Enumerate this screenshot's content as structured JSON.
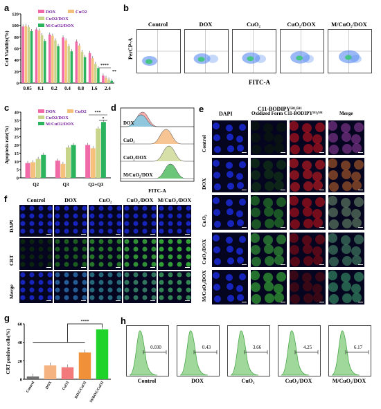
{
  "panels": {
    "a": "a",
    "b": "b",
    "c": "c",
    "d": "d",
    "e": "e",
    "f": "f",
    "g": "g",
    "h": "h"
  },
  "colors": {
    "pink": "#f06aa8",
    "orange": "#f4c07c",
    "olive": "#c8d48a",
    "green": "#2bb35e",
    "green_bright": "#1fd32a",
    "peach": "#f4b381",
    "salmon": "#f27a7a",
    "dark_orange": "#f09039"
  },
  "chart_data": [
    {
      "panel": "a",
      "type": "bar",
      "ylabel": "Cell Viability(%)",
      "categories": [
        "0.05",
        "0.1",
        "0.2",
        "0.4",
        "0.8",
        "1.6",
        "2.4"
      ],
      "ylim": [
        0,
        120
      ],
      "yticks": [
        "0",
        "20",
        "40",
        "60",
        "80",
        "100",
        "120"
      ],
      "series": [
        {
          "name": "DOX",
          "color": "#f06aa8",
          "values": [
            98,
            93,
            84,
            79,
            72,
            52,
            13
          ]
        },
        {
          "name": "CuO2",
          "color": "#f4c07c",
          "values": [
            99,
            91,
            82,
            74,
            65,
            43,
            9
          ]
        },
        {
          "name": "CuO2/DOX",
          "color": "#c8d48a",
          "values": [
            97,
            83,
            74,
            64,
            54,
            33,
            6
          ]
        },
        {
          "name": "M/CuO2/DOX",
          "color": "#2bb35e",
          "values": [
            90,
            73,
            64,
            55,
            45,
            26,
            4
          ]
        }
      ],
      "annotations": [
        "****",
        "**"
      ]
    },
    {
      "panel": "c",
      "type": "bar",
      "ylabel": "Apoptosis rate(%)",
      "categories": [
        "Q2",
        "Q3",
        "Q2+Q3"
      ],
      "ylim": [
        0,
        40
      ],
      "yticks": [
        "0",
        "5",
        "10",
        "15",
        "20",
        "25",
        "30",
        "35",
        "40"
      ],
      "series": [
        {
          "name": "DOX",
          "color": "#f06aa8",
          "values": [
            9,
            10.5,
            20
          ]
        },
        {
          "name": "CuO2",
          "color": "#f4c07c",
          "values": [
            9.5,
            8.5,
            18
          ]
        },
        {
          "name": "CuO2/DOX",
          "color": "#c8d48a",
          "values": [
            11.5,
            18.5,
            30
          ]
        },
        {
          "name": "M/CuO2/DOX",
          "color": "#2bb35e",
          "values": [
            14,
            20,
            34
          ]
        }
      ],
      "annotations": [
        "***",
        "*"
      ]
    },
    {
      "panel": "g",
      "type": "bar",
      "ylabel": "CRT positive cells(%)",
      "categories": [
        "Control",
        "DOX",
        "CuO2",
        "DOX/CuO2",
        "M/DOX/CuO2"
      ],
      "ylim": [
        0,
        60
      ],
      "yticks": [
        "0",
        "20",
        "40",
        "60"
      ],
      "colors": [
        "#6f6f6f",
        "#f4b381",
        "#f27a7a",
        "#f09039",
        "#1fd32a"
      ],
      "values": [
        3,
        15,
        13,
        29,
        54
      ],
      "annotations": [
        "****"
      ]
    },
    {
      "panel": "h",
      "type": "histogram",
      "groups": [
        {
          "name": "Control",
          "value": "0.030"
        },
        {
          "name": "DOX",
          "value": "0.43"
        },
        {
          "name": "CuO₂",
          "value": "3.66"
        },
        {
          "name": "CuO₂/DOX",
          "value": "4.25"
        },
        {
          "name": "M/CuO₂/DOX",
          "value": "6.17"
        }
      ]
    },
    {
      "panel": "d",
      "type": "histogram",
      "xlabel": "FITC-A",
      "groups": [
        "DOX",
        "CuO₂",
        "CuO₂/DOX",
        "M/CuO₂/DOX"
      ]
    }
  ],
  "panel_b": {
    "ylabel": "PerCP-A",
    "xlabel": "FITC-A",
    "groups": [
      "Control",
      "DOX",
      "CuO₂",
      "CuO₂/DOX",
      "M/CuO₂/DOX"
    ]
  },
  "panel_e": {
    "headers": [
      "DAPI",
      "C11-BODIPY⁵⁸¹/⁵⁹¹\nOxidized Form",
      "C11-BODIPY⁵⁸¹/⁵⁹¹",
      "Merge"
    ],
    "header_top": "C11-BODIPY⁵⁸¹/⁵⁹¹",
    "rows": [
      "Control",
      "DOX",
      "CuO₂",
      "CuO₂/DOX",
      "M/CuO₂/DOX"
    ]
  },
  "panel_f": {
    "columns": [
      "Control",
      "DOX",
      "CuO₂",
      "CuO₂/DOX",
      "M/CuO₂/DOX"
    ],
    "rows": [
      "DAPI",
      "CRT",
      "Merge"
    ]
  }
}
